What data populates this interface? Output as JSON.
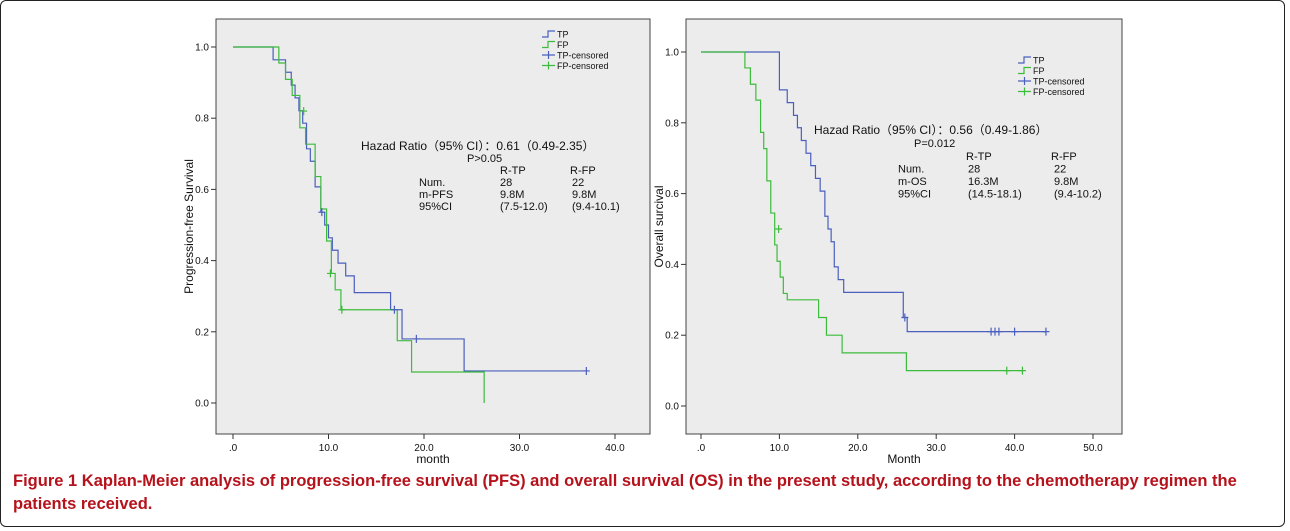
{
  "colors": {
    "tp": "#4a5fbe",
    "fp": "#3dbb3d",
    "plot_bg": "#ececec",
    "caption": "#b5121b"
  },
  "caption": {
    "label": "Figure 1",
    "text": "Kaplan-Meier analysis of progression-free survival (PFS) and overall survival (OS) in the present study, according to the chemotherapy regimen the patients received."
  },
  "chart_data": [
    {
      "type": "line",
      "subtype": "kaplan-meier",
      "xlabel": "month",
      "ylabel": "Progression-free Survival",
      "xlim": [
        0,
        40
      ],
      "ylim": [
        0,
        1
      ],
      "xticks": [
        0,
        10,
        20,
        30,
        40
      ],
      "xtick_labels": [
        ".0",
        "10.0",
        "20.0",
        "30.0",
        "40.0"
      ],
      "yticks": [
        0,
        0.2,
        0.4,
        0.6,
        0.8,
        1.0
      ],
      "ytick_labels": [
        "0.0",
        "0.2",
        "0.4",
        "0.6",
        "0.8",
        "1.0"
      ],
      "grid": false,
      "legend_position": "top-right",
      "legend": [
        "TP",
        "FP",
        "TP-censored",
        "FP-censored"
      ],
      "series": [
        {
          "name": "TP",
          "x": [
            0,
            4.2,
            5.5,
            6.1,
            6.5,
            6.9,
            7.3,
            7.7,
            8.1,
            8.6,
            9.2,
            9.6,
            10.0,
            10.4,
            11.0,
            11.8,
            12.7,
            16.5,
            17.7,
            24.2,
            37.0
          ],
          "y": [
            1.0,
            0.964,
            0.929,
            0.893,
            0.857,
            0.821,
            0.786,
            0.714,
            0.679,
            0.607,
            0.536,
            0.5,
            0.464,
            0.429,
            0.393,
            0.357,
            0.31,
            0.262,
            0.18,
            0.09,
            0.09
          ]
        },
        {
          "name": "FP",
          "x": [
            0,
            4.8,
            5.5,
            6.2,
            7.0,
            7.6,
            8.6,
            9.2,
            9.8,
            10.3,
            10.7,
            11.3,
            16.2,
            17.2,
            18.7,
            26.3,
            26.3
          ],
          "y": [
            1.0,
            0.955,
            0.909,
            0.864,
            0.773,
            0.727,
            0.636,
            0.545,
            0.455,
            0.364,
            0.318,
            0.262,
            0.262,
            0.175,
            0.087,
            0.087,
            0.0
          ]
        },
        {
          "name": "TP-censored",
          "x": [
            9.3,
            16.9,
            19.2,
            37.0
          ],
          "y": [
            0.536,
            0.262,
            0.18,
            0.09
          ]
        },
        {
          "name": "FP-censored",
          "x": [
            7.4,
            10.2,
            11.4
          ],
          "y": [
            0.82,
            0.364,
            0.262
          ]
        }
      ],
      "annotation_lines": [
        "Hazad Ratio（95% CI）：0.61（0.49-2.35）",
        "P>0.05",
        "R-TP",
        "R-FP",
        "Num.",
        "28",
        "22",
        "m-PFS",
        "9.8M",
        "9.8M",
        "95%CI",
        "(7.5-12.0)",
        "(9.4-10.1)"
      ]
    },
    {
      "type": "line",
      "subtype": "kaplan-meier",
      "xlabel": "Month",
      "ylabel": "Overall surcival",
      "xlim": [
        0,
        50
      ],
      "ylim": [
        0,
        1
      ],
      "xticks": [
        0,
        10,
        20,
        30,
        40,
        50
      ],
      "xtick_labels": [
        ".0",
        "10.0",
        "20.0",
        "30.0",
        "40.0",
        "50.0"
      ],
      "yticks": [
        0,
        0.2,
        0.4,
        0.6,
        0.8,
        1.0
      ],
      "ytick_labels": [
        "0.0",
        "0.2",
        "0.4",
        "0.6",
        "0.8",
        "1.0"
      ],
      "grid": false,
      "legend_position": "top-right",
      "legend": [
        "TP",
        "FP",
        "TP-censored",
        "FP-censored"
      ],
      "series": [
        {
          "name": "TP",
          "x": [
            0,
            10.0,
            11.0,
            11.8,
            12.3,
            12.8,
            13.4,
            14.0,
            14.6,
            15.2,
            15.8,
            16.2,
            16.6,
            17.0,
            17.5,
            18.2,
            20.0,
            25.8,
            26.3,
            44.0
          ],
          "y": [
            1.0,
            0.893,
            0.857,
            0.821,
            0.786,
            0.75,
            0.714,
            0.679,
            0.643,
            0.607,
            0.536,
            0.5,
            0.464,
            0.393,
            0.357,
            0.321,
            0.321,
            0.25,
            0.21,
            0.21
          ]
        },
        {
          "name": "FP",
          "x": [
            0,
            5.6,
            6.3,
            7.0,
            7.6,
            8.0,
            8.4,
            8.9,
            9.4,
            9.7,
            10.1,
            10.5,
            11.0,
            15.0,
            16.0,
            18.0,
            26.2,
            41.0
          ],
          "y": [
            1.0,
            0.955,
            0.909,
            0.864,
            0.773,
            0.727,
            0.636,
            0.545,
            0.455,
            0.409,
            0.364,
            0.318,
            0.3,
            0.25,
            0.2,
            0.15,
            0.1,
            0.1
          ]
        },
        {
          "name": "TP-censored",
          "x": [
            26.0,
            37.0,
            37.5,
            38.0,
            40.0,
            44.0
          ],
          "y": [
            0.25,
            0.21,
            0.21,
            0.21,
            0.21,
            0.21
          ]
        },
        {
          "name": "FP-censored",
          "x": [
            9.9,
            39.0,
            41.0
          ],
          "y": [
            0.5,
            0.1,
            0.1
          ]
        }
      ],
      "annotation_lines": [
        "Hazad Ratio（95% CI）：0.56（0.49-1.86）",
        "P=0.012",
        "R-TP",
        "R-FP",
        "Num.",
        "28",
        "22",
        "m-OS",
        "16.3M",
        "9.8M",
        "95%CI",
        "(14.5-18.1)",
        "(9.4-10.2)"
      ]
    }
  ]
}
